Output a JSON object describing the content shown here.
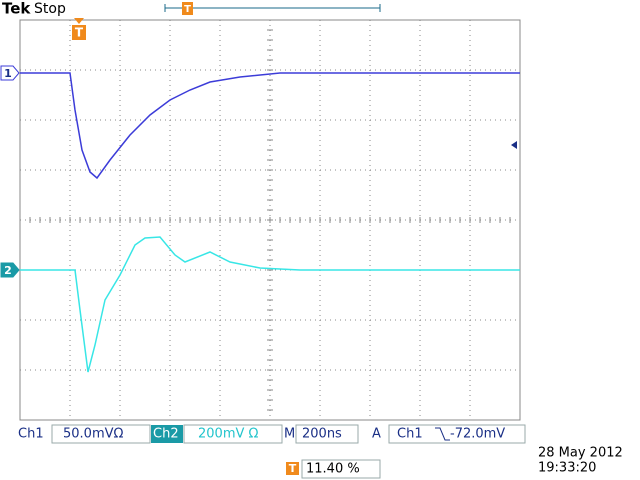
{
  "header": {
    "brand": "Tek",
    "status": "Stop",
    "trigger_icon": "T"
  },
  "channels": [
    {
      "label": "1",
      "color": "#3c3cd8",
      "x": [
        0,
        1,
        1.1,
        1.24,
        1.4,
        1.54,
        1.8,
        2.2,
        2.6,
        3,
        3.4,
        3.8,
        4.4,
        5.2,
        10
      ],
      "y": [
        2.94,
        2.94,
        2.2,
        1.4,
        0.96,
        0.84,
        1.2,
        1.7,
        2.1,
        2.4,
        2.6,
        2.76,
        2.86,
        2.94,
        2.94
      ]
    },
    {
      "label": "2",
      "color": "#38e6e6",
      "x": [
        0,
        1.1,
        1.2,
        1.36,
        1.5,
        1.7,
        2,
        2.3,
        2.5,
        2.8,
        3.1,
        3.3,
        3.8,
        4.2,
        4.8,
        5.6,
        10
      ],
      "y": [
        -1,
        -1,
        -1.8,
        -3.04,
        -2.5,
        -1.6,
        -1.1,
        -0.5,
        -0.36,
        -0.34,
        -0.7,
        -0.84,
        -0.64,
        -0.84,
        -0.96,
        -1,
        -1
      ]
    }
  ],
  "readout": {
    "ch1": "Ch1",
    "ch1_scale": "50.0mVΩ",
    "ch2": "Ch2",
    "ch2_scale": "200mV Ω",
    "main": "M",
    "timebase": "200ns",
    "trigger_mode": "A",
    "trigger_source": "Ch1",
    "trigger_level": "-72.0mV"
  },
  "trigger_position": {
    "icon": "T",
    "value": "11.40 %"
  },
  "timestamp": {
    "date": "28 May 2012",
    "time": "19:33:20"
  }
}
